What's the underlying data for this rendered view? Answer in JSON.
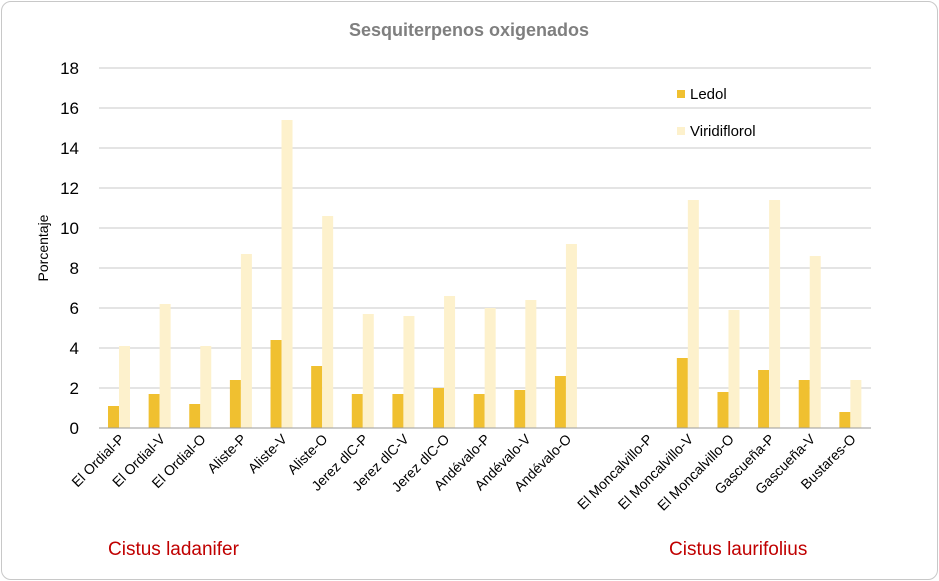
{
  "chart_data": {
    "type": "bar",
    "title": "Sesquiterpenos oxigenados",
    "ylabel": "Porcentaje",
    "xlabel": "",
    "ylim": [
      0,
      18
    ],
    "yticks": [
      0,
      2,
      4,
      6,
      8,
      10,
      12,
      14,
      16,
      18
    ],
    "grid": true,
    "legend_position": "top-right",
    "categories": [
      "El Ordial-P",
      "El Ordial-V",
      "El Ordial-O",
      "Aliste-P",
      "Aliste-V",
      "Aliste-O",
      "Jerez dlC-P",
      "Jerez dlC-V",
      "Jerez dlC-O",
      "Andévalo-P",
      "Andévalo-V",
      "Andévalo-O",
      "",
      "El Moncalvillo-P",
      "El Moncalvillo-V",
      "El Moncalvillo-O",
      "Gascueña-P",
      "Gascueña-V",
      "Bustares-O"
    ],
    "series": [
      {
        "name": "Ledol",
        "color": "#f0c030",
        "values": [
          1.1,
          1.7,
          1.2,
          2.4,
          4.4,
          3.1,
          1.7,
          1.7,
          2.0,
          1.7,
          1.9,
          2.6,
          null,
          0,
          3.5,
          1.8,
          2.9,
          2.4,
          0.8
        ]
      },
      {
        "name": "Viridiflorol",
        "color": "#fdf1cc",
        "values": [
          4.1,
          6.2,
          4.1,
          8.7,
          15.4,
          10.6,
          5.7,
          5.6,
          6.6,
          6.0,
          6.4,
          9.2,
          null,
          0,
          11.4,
          5.9,
          11.4,
          8.6,
          2.4
        ]
      }
    ],
    "group_labels": [
      {
        "text": "Cistus ladanifer",
        "start": 0,
        "end": 11
      },
      {
        "text": "Cistus laurifolius",
        "start": 13,
        "end": 18
      }
    ],
    "group_label_color": "#c00000"
  }
}
